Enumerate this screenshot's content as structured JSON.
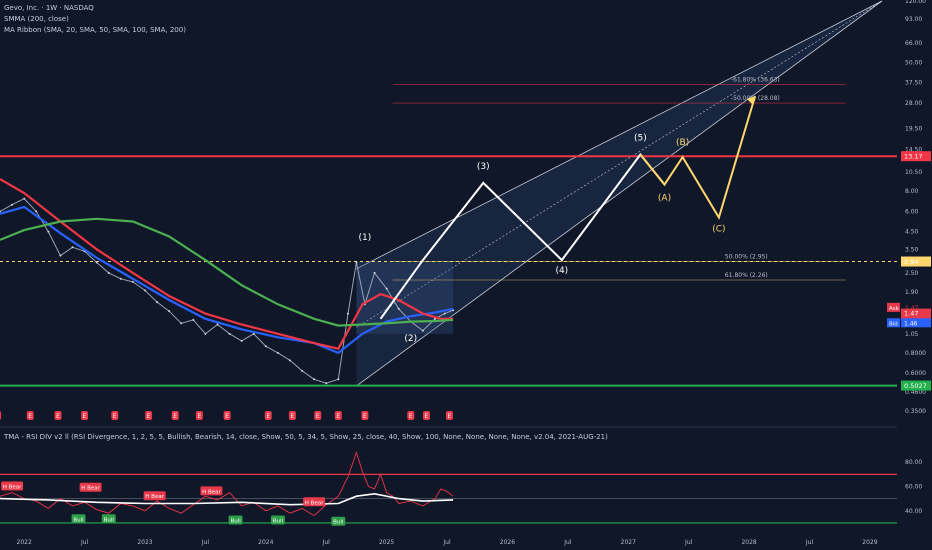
{
  "legend": {
    "title": "Gevo, Inc. · 1W · NASDAQ",
    "smma": "SMMA (200, close)",
    "ribbon": "MA Ribbon (SMA, 20, SMA, 50, SMA, 100, SMA, 200)",
    "rsi": "TMA - RSI DIV v2 ll (RSI Divergence, 1, 2, 5, 5, Bullish, Bearish, 14, close, Show, 50, 5, 34, 5, Show, 25, close, 40, Show, 100, None, None, None, None, v2.04, 2021-AUG-21)"
  },
  "colors": {
    "background": "#0f1729",
    "resistance": "#f23645",
    "support": "#22b14c",
    "wave_main": "#ffffff",
    "wave_corrective": "#ffd66b",
    "blue_ma": "#2962ff",
    "red_ma": "#f23645",
    "green_ma": "#4caf50",
    "rsi_line": "#f23645",
    "rsi_ma": "#ffffff"
  },
  "chart_data": [
    {
      "type": "line",
      "title": "Gevo, Inc. · 1W · NASDAQ",
      "scale": "log",
      "ylim": [
        0.35,
        120
      ],
      "y_ticks": [
        "120.00",
        "93.00",
        "66.00",
        "50.00",
        "37.50",
        "28.00",
        "19.50",
        "14.50",
        "10.50",
        "8.00",
        "6.00",
        "4.50",
        "3.50",
        "2.50",
        "1.90",
        "1.40",
        "1.05",
        "0.8000",
        "0.6000",
        "0.4600",
        "0.3500"
      ],
      "x_ticks": [
        "2022",
        "Jul",
        "2023",
        "Jul",
        "2024",
        "Jul",
        "2025",
        "Jul",
        "2026",
        "Jul",
        "2027",
        "Jul",
        "2028",
        "Jul",
        "2029"
      ],
      "price_labels": {
        "resistance": "13.17",
        "ask_label": "Ask",
        "ask": "1.47",
        "last": "1.47",
        "countdown": "02:31:10",
        "bid_label": "Bid",
        "bid": "1.46",
        "dashed_level": "2.94",
        "support": "0.5027"
      },
      "price_series": {
        "x": [
          2021.8,
          2021.9,
          2022.0,
          2022.1,
          2022.2,
          2022.3,
          2022.4,
          2022.5,
          2022.6,
          2022.7,
          2022.8,
          2022.9,
          2023.0,
          2023.1,
          2023.2,
          2023.3,
          2023.4,
          2023.5,
          2023.6,
          2023.7,
          2023.8,
          2023.9,
          2024.0,
          2024.1,
          2024.2,
          2024.3,
          2024.4,
          2024.5,
          2024.6,
          2024.68,
          2024.75,
          2024.82,
          2024.9,
          2025.0,
          2025.1,
          2025.2,
          2025.3,
          2025.4,
          2025.48,
          2025.55
        ],
        "y": [
          6.0,
          6.6,
          7.2,
          6.0,
          4.5,
          3.2,
          3.6,
          3.4,
          2.9,
          2.5,
          2.3,
          2.2,
          1.95,
          1.65,
          1.45,
          1.22,
          1.28,
          1.05,
          1.2,
          1.05,
          0.95,
          1.05,
          0.88,
          0.8,
          0.72,
          0.62,
          0.55,
          0.52,
          0.55,
          1.4,
          2.9,
          1.6,
          2.5,
          2.0,
          1.5,
          1.25,
          1.1,
          1.3,
          1.4,
          1.47
        ]
      },
      "ma_series": [
        {
          "color": "#2962ff",
          "x": [
            2021.8,
            2022.0,
            2022.3,
            2022.6,
            2022.9,
            2023.2,
            2023.5,
            2023.8,
            2024.1,
            2024.4,
            2024.6,
            2024.8,
            2025.0,
            2025.2,
            2025.4,
            2025.55
          ],
          "y": [
            5.8,
            6.4,
            4.4,
            3.1,
            2.3,
            1.7,
            1.3,
            1.12,
            1.0,
            0.92,
            0.8,
            1.05,
            1.25,
            1.35,
            1.42,
            1.5
          ]
        },
        {
          "color": "#f23645",
          "x": [
            2021.8,
            2022.0,
            2022.3,
            2022.6,
            2022.9,
            2023.2,
            2023.5,
            2023.8,
            2024.1,
            2024.4,
            2024.6,
            2024.8,
            2024.95,
            2025.1,
            2025.3,
            2025.45,
            2025.55
          ],
          "y": [
            9.5,
            7.8,
            5.2,
            3.5,
            2.5,
            1.8,
            1.4,
            1.2,
            1.05,
            0.92,
            0.85,
            1.6,
            1.85,
            1.7,
            1.4,
            1.3,
            1.3
          ]
        },
        {
          "color": "#4caf50",
          "x": [
            2021.8,
            2022.0,
            2022.3,
            2022.6,
            2022.9,
            2023.2,
            2023.5,
            2023.8,
            2024.1,
            2024.4,
            2024.6,
            2024.8,
            2025.0,
            2025.2,
            2025.4,
            2025.55
          ],
          "y": [
            4.0,
            4.6,
            5.2,
            5.4,
            5.2,
            4.2,
            3.0,
            2.1,
            1.6,
            1.3,
            1.18,
            1.2,
            1.22,
            1.25,
            1.26,
            1.28
          ]
        }
      ],
      "levels": [
        {
          "name": "resistance",
          "y": 13.17
        },
        {
          "name": "dashed",
          "y": 2.94
        },
        {
          "name": "support",
          "y": 0.5027
        }
      ],
      "fib_levels": [
        {
          "label": "-61.80% (36.63)",
          "y": 36.63
        },
        {
          "label": "-50.00% (28.08)",
          "y": 28.08
        },
        {
          "label": "50.00% (2.95)",
          "y": 2.95
        },
        {
          "label": "61.80% (2.26)",
          "y": 2.26
        }
      ],
      "wave_path": {
        "x": [
          2024.95,
          2025.3,
          2025.8,
          2026.45,
          2027.1,
          2027.3,
          2027.45,
          2027.75,
          2028.05
        ],
        "y": [
          1.3,
          3.0,
          9.0,
          3.0,
          13.5,
          8.8,
          13.0,
          5.5,
          31.0
        ]
      },
      "wave_labels": [
        {
          "text": "(1)",
          "x": 2024.82,
          "y": 4.0,
          "corrective": false
        },
        {
          "text": "(2)",
          "x": 2025.2,
          "y": 0.95,
          "corrective": false
        },
        {
          "text": "(3)",
          "x": 2025.8,
          "y": 11.0,
          "corrective": false
        },
        {
          "text": "(4)",
          "x": 2026.45,
          "y": 2.5,
          "corrective": false
        },
        {
          "text": "(5)",
          "x": 2027.1,
          "y": 16.5,
          "corrective": false
        },
        {
          "text": "(A)",
          "x": 2027.3,
          "y": 7.0,
          "corrective": true
        },
        {
          "text": "(B)",
          "x": 2027.45,
          "y": 15.5,
          "corrective": true
        },
        {
          "text": "(C)",
          "x": 2027.75,
          "y": 4.5,
          "corrective": true
        }
      ],
      "earnings_markers": {
        "label": "E",
        "x": [
          2021.78,
          2022.05,
          2022.28,
          2022.5,
          2022.75,
          2023.03,
          2023.25,
          2023.45,
          2023.68,
          2024.02,
          2024.22,
          2024.43,
          2024.6,
          2024.82,
          2025.2,
          2025.33,
          2025.52
        ]
      }
    },
    {
      "type": "line",
      "title": "TMA - RSI DIV v2 ll",
      "ylim": [
        25,
        95
      ],
      "y_ticks": [
        "80.00",
        "60.00",
        "40.00"
      ],
      "bands": [
        70,
        50,
        30
      ],
      "rsi": {
        "x": [
          2021.8,
          2021.9,
          2022.0,
          2022.1,
          2022.2,
          2022.3,
          2022.4,
          2022.5,
          2022.6,
          2022.7,
          2022.8,
          2022.9,
          2023.0,
          2023.1,
          2023.2,
          2023.3,
          2023.4,
          2023.5,
          2023.6,
          2023.7,
          2023.8,
          2023.9,
          2024.0,
          2024.1,
          2024.2,
          2024.3,
          2024.4,
          2024.5,
          2024.6,
          2024.68,
          2024.75,
          2024.8,
          2024.85,
          2024.9,
          2024.95,
          2025.0,
          2025.05,
          2025.1,
          2025.2,
          2025.3,
          2025.4,
          2025.45,
          2025.5,
          2025.55
        ],
        "y": [
          52,
          55,
          50,
          48,
          42,
          50,
          44,
          47,
          41,
          38,
          46,
          44,
          40,
          48,
          42,
          38,
          45,
          52,
          49,
          55,
          44,
          47,
          40,
          44,
          38,
          42,
          36,
          45,
          52,
          68,
          88,
          72,
          60,
          58,
          70,
          55,
          52,
          46,
          48,
          44,
          50,
          58,
          56,
          52
        ]
      },
      "rsi_ma": {
        "x": [
          2021.8,
          2022.2,
          2022.6,
          2023.0,
          2023.4,
          2023.8,
          2024.2,
          2024.6,
          2024.75,
          2024.9,
          2025.1,
          2025.3,
          2025.55
        ],
        "y": [
          50,
          49,
          47,
          46,
          46,
          47,
          45,
          46,
          52,
          54,
          50,
          48,
          49
        ]
      },
      "signals": [
        {
          "label": "H Bear",
          "kind": "bear",
          "x": 2021.9,
          "y": 60
        },
        {
          "label": "H Bear",
          "kind": "bear",
          "x": 2022.55,
          "y": 59
        },
        {
          "label": "H Bear",
          "kind": "bear",
          "x": 2023.08,
          "y": 52
        },
        {
          "label": "H Bear",
          "kind": "bear",
          "x": 2023.55,
          "y": 56
        },
        {
          "label": "H Bear",
          "kind": "bear",
          "x": 2024.4,
          "y": 47
        },
        {
          "label": "Bull",
          "kind": "bull",
          "x": 2022.45,
          "y": 33
        },
        {
          "label": "Bull",
          "kind": "bull",
          "x": 2022.7,
          "y": 33
        },
        {
          "label": "Bull",
          "kind": "bull",
          "x": 2023.75,
          "y": 32
        },
        {
          "label": "Bull",
          "kind": "bull",
          "x": 2024.1,
          "y": 32
        },
        {
          "label": "Bull",
          "kind": "bull",
          "x": 2024.6,
          "y": 31
        }
      ]
    }
  ]
}
